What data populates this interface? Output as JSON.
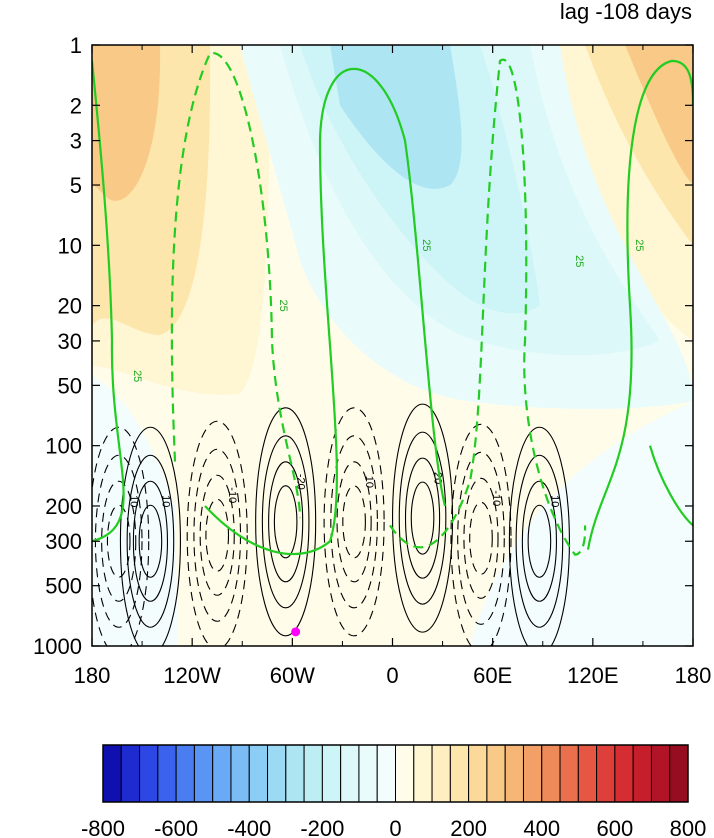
{
  "chart_data": {
    "type": "heatmap",
    "title": "lag -108 days",
    "xlabel": "",
    "ylabel": "",
    "x_ticks": [
      "180",
      "120W",
      "60W",
      "0",
      "60E",
      "120E",
      "180"
    ],
    "x_tick_values": [
      -180,
      -120,
      -60,
      0,
      60,
      120,
      180
    ],
    "xlim": [
      -180,
      180
    ],
    "y_scale": "log",
    "y_reversed": true,
    "ylim": [
      1,
      1000
    ],
    "y_ticks": [
      "1",
      "2",
      "3",
      "5",
      "10",
      "20",
      "30",
      "50",
      "100",
      "200",
      "300",
      "500",
      "1000"
    ],
    "y_tick_values": [
      1,
      2,
      3,
      5,
      10,
      20,
      30,
      50,
      100,
      200,
      300,
      500,
      1000
    ],
    "colorbar": {
      "levels": [
        -800,
        -750,
        -700,
        -650,
        -600,
        -550,
        -500,
        -450,
        -400,
        -350,
        -300,
        -250,
        -200,
        -150,
        -100,
        -50,
        0,
        50,
        100,
        150,
        200,
        250,
        300,
        350,
        400,
        450,
        500,
        550,
        600,
        650,
        700,
        750,
        800
      ],
      "labels": [
        "-800",
        "-600",
        "-400",
        "-200",
        "0",
        "200",
        "400",
        "600",
        "800"
      ],
      "label_values": [
        -800,
        -600,
        -400,
        -200,
        0,
        200,
        400,
        600,
        800
      ],
      "colors": [
        "#1010b0",
        "#1e2ccf",
        "#2c47e3",
        "#3a62ee",
        "#4a7cf2",
        "#5a94f4",
        "#6aa9f5",
        "#7bbcf5",
        "#8bcdf4",
        "#9cdaf3",
        "#ade5f3",
        "#bdeef4",
        "#cdf4f6",
        "#dcf8f8",
        "#e9fbfb",
        "#f4fdfd",
        "#fffcea",
        "#fff6d3",
        "#ffefc0",
        "#fde6ac",
        "#fbd99a",
        "#f8c987",
        "#f5b676",
        "#f2a066",
        "#ee8959",
        "#ea704d",
        "#e55743",
        "#df3f3a",
        "#d52d31",
        "#c61f2b",
        "#b01426",
        "#960d22"
      ]
    },
    "filled_anomaly": {
      "pattern": "tilted wave, upper levels, wavenumber ~2-3",
      "cells": [
        {
          "lon": -150,
          "p": 3,
          "value": 250
        },
        {
          "lon": 165,
          "p": 3,
          "value": 250
        },
        {
          "lon": -15,
          "p": 3,
          "value": -200
        },
        {
          "lon": 20,
          "p": 30,
          "value": -100
        },
        {
          "lon": -80,
          "p": 200,
          "value": 20
        },
        {
          "lon": 120,
          "p": 300,
          "value": -20
        }
      ]
    },
    "black_contours": {
      "interval": 10,
      "negative_style": "dashed",
      "labels": [
        "10",
        "10",
        "-10",
        "-20",
        "10",
        "20",
        "-10",
        "10",
        "20",
        "-10",
        "10"
      ],
      "centers": [
        {
          "lon": -145,
          "p": 300,
          "sign": "positive"
        },
        {
          "lon": -164,
          "p": 300,
          "sign": "negative"
        },
        {
          "lon": -105,
          "p": 280,
          "sign": "negative"
        },
        {
          "lon": -64,
          "p": 240,
          "sign": "positive"
        },
        {
          "lon": -23,
          "p": 240,
          "sign": "negative"
        },
        {
          "lon": 18,
          "p": 230,
          "sign": "positive"
        },
        {
          "lon": 53,
          "p": 290,
          "sign": "negative"
        },
        {
          "lon": 88,
          "p": 300,
          "sign": "positive"
        }
      ]
    },
    "green_contours": {
      "label": "25",
      "description": "25 contour lines, solid and dashed, wrapping around the wave pattern"
    },
    "marker": {
      "lon": -58,
      "p": 850,
      "color": "#ff00ff"
    }
  }
}
